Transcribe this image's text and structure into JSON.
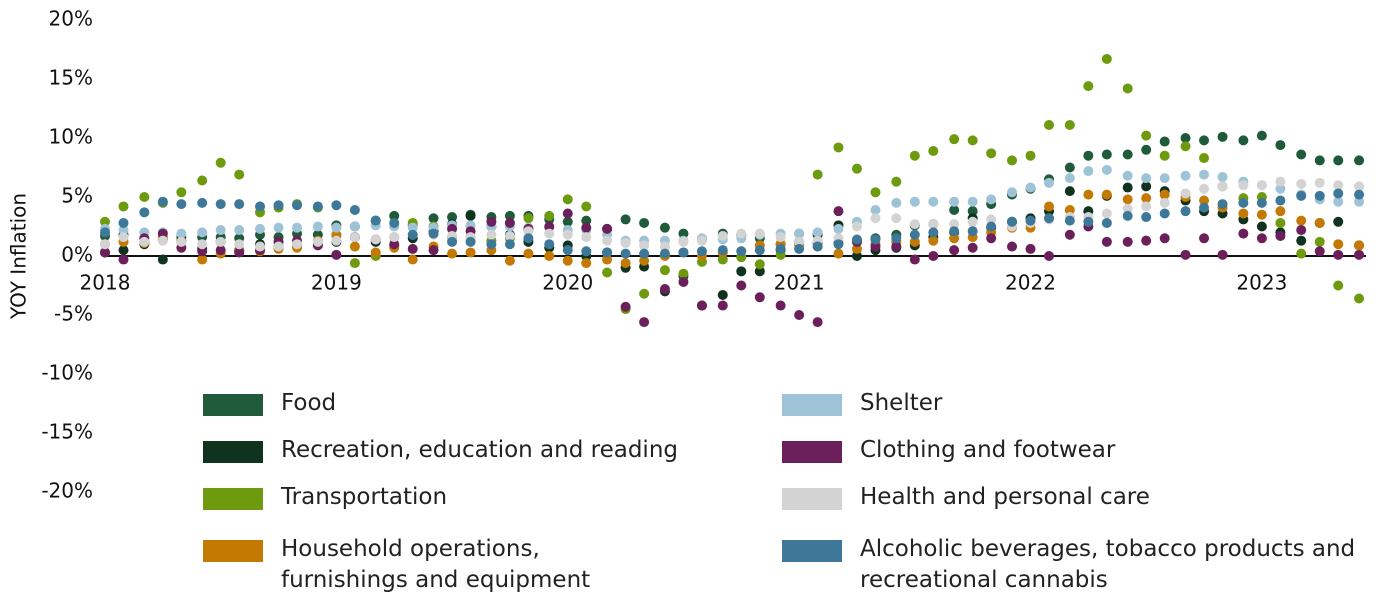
{
  "chart_data": {
    "type": "scatter",
    "y_label": "YOY Inflation",
    "xlim": [
      2018,
      2023.45
    ],
    "xticks": [
      2018,
      2019,
      2020,
      2021,
      2022,
      2023
    ],
    "ylim": [
      -20,
      20
    ],
    "yticks": [
      {
        "value": 20,
        "label": "20%"
      },
      {
        "value": 15,
        "label": "15%"
      },
      {
        "value": 10,
        "label": "10%"
      },
      {
        "value": 5,
        "label": "5%"
      },
      {
        "value": 0,
        "label": "0%"
      },
      {
        "value": -5,
        "label": "-5%"
      },
      {
        "value": -10,
        "label": "-10%"
      },
      {
        "value": -15,
        "label": "-15%"
      },
      {
        "value": -20,
        "label": "-20%"
      }
    ],
    "x": [
      2018,
      2018.08,
      2018.17,
      2018.25,
      2018.33,
      2018.42,
      2018.5,
      2018.58,
      2018.67,
      2018.75,
      2018.83,
      2018.92,
      2019,
      2019.08,
      2019.17,
      2019.25,
      2019.33,
      2019.42,
      2019.5,
      2019.58,
      2019.67,
      2019.75,
      2019.83,
      2019.92,
      2020,
      2020.08,
      2020.17,
      2020.25,
      2020.33,
      2020.42,
      2020.5,
      2020.58,
      2020.67,
      2020.75,
      2020.83,
      2020.92,
      2021,
      2021.08,
      2021.17,
      2021.25,
      2021.33,
      2021.42,
      2021.5,
      2021.58,
      2021.67,
      2021.75,
      2021.83,
      2021.92,
      2022,
      2022.08,
      2022.17,
      2022.25,
      2022.33,
      2022.42,
      2022.5,
      2022.58,
      2022.67,
      2022.75,
      2022.83,
      2022.92,
      2023,
      2023.08,
      2023.17,
      2023.25,
      2023.33,
      2023.42
    ],
    "series": [
      {
        "name": "Food",
        "color": "#1f5b3b",
        "values": [
          1.7,
          1.8,
          1.2,
          1.4,
          1.6,
          1.6,
          1.6,
          1.5,
          1.8,
          1.6,
          1.9,
          1.8,
          2.6,
          2.5,
          3.0,
          3.4,
          2.6,
          3.2,
          3.3,
          3.5,
          3.3,
          3.4,
          3.4,
          3.1,
          2.9,
          3.0,
          2.3,
          3.1,
          2.8,
          2.4,
          1.9,
          1.4,
          1.9,
          1.8,
          1.5,
          1.0,
          1.0,
          1.1,
          1.1,
          1.3,
          1.5,
          1.8,
          2.6,
          2.7,
          3.9,
          3.8,
          4.4,
          5.2,
          5.7,
          6.5,
          7.5,
          8.5,
          8.6,
          8.6,
          9.0,
          9.7,
          10.0,
          9.8,
          10.1,
          9.8,
          10.2,
          9.4,
          8.6,
          8.1,
          8.1,
          8.1
        ]
      },
      {
        "name": "Recreation, education and reading",
        "color": "#10331f",
        "values": [
          0.3,
          0.5,
          1.0,
          -0.3,
          1.3,
          0.6,
          1.2,
          0.5,
          1.0,
          0.8,
          0.8,
          1.0,
          1.2,
          1.6,
          1.2,
          0.9,
          1.5,
          2.1,
          2.7,
          3.4,
          2.5,
          1.8,
          1.2,
          0.7,
          0.9,
          0.0,
          0.3,
          -1.0,
          -0.9,
          -3.0,
          -1.7,
          -4.2,
          -3.3,
          -1.3,
          -1.3,
          0.5,
          1.2,
          1.8,
          2.6,
          0.0,
          0.5,
          0.7,
          0.9,
          1.6,
          2.0,
          3.2,
          2.4,
          2.9,
          3.2,
          3.8,
          5.5,
          3.8,
          5.1,
          5.8,
          5.9,
          5.5,
          4.7,
          3.8,
          3.6,
          3.1,
          2.5,
          2.0,
          1.3,
          2.8,
          2.9,
          0.9
        ]
      },
      {
        "name": "Transportation",
        "color": "#6e9a0d",
        "values": [
          2.9,
          4.2,
          5.0,
          4.5,
          5.4,
          6.4,
          7.9,
          6.9,
          3.7,
          4.1,
          4.4,
          4.1,
          1.7,
          -0.6,
          0.0,
          1.6,
          2.8,
          2.5,
          1.6,
          1.6,
          1.3,
          1.5,
          3.2,
          3.4,
          4.8,
          4.2,
          -1.4,
          -4.5,
          -3.2,
          -1.2,
          -1.5,
          -0.5,
          -0.3,
          -0.1,
          -0.7,
          0.1,
          1.9,
          6.9,
          9.2,
          7.4,
          5.4,
          6.3,
          8.5,
          8.9,
          9.9,
          9.8,
          8.7,
          8.1,
          8.5,
          11.1,
          11.1,
          14.4,
          16.7,
          14.2,
          10.2,
          8.5,
          9.3,
          8.3,
          5.9,
          4.9,
          5.0,
          2.8,
          0.2,
          1.2,
          -2.5,
          -3.6
        ]
      },
      {
        "name": "Household operations, furnishings and equipment",
        "color": "#c47a02",
        "values": [
          1.0,
          1.2,
          1.1,
          1.6,
          1.2,
          -0.3,
          0.2,
          0.4,
          0.4,
          0.6,
          0.7,
          1.3,
          1.8,
          0.8,
          0.3,
          0.7,
          -0.3,
          0.8,
          0.2,
          0.3,
          0.5,
          -0.4,
          0.2,
          0.0,
          -0.4,
          -0.6,
          -0.3,
          -0.6,
          -0.4,
          0.0,
          0.3,
          0.0,
          0.3,
          0.4,
          0.9,
          1.0,
          1.0,
          0.8,
          0.2,
          0.6,
          1.0,
          1.2,
          1.2,
          1.3,
          1.5,
          1.6,
          2.0,
          2.4,
          2.4,
          4.2,
          3.9,
          5.2,
          5.2,
          4.8,
          4.9,
          5.2,
          5.0,
          4.7,
          4.1,
          3.6,
          3.5,
          3.8,
          3.0,
          2.8,
          1.0,
          0.9
        ]
      },
      {
        "name": "Shelter",
        "color": "#9ec3d7",
        "values": [
          2.3,
          2.2,
          2.0,
          2.0,
          1.9,
          2.0,
          2.2,
          2.2,
          2.3,
          2.4,
          2.4,
          2.5,
          2.4,
          2.5,
          2.6,
          2.5,
          2.4,
          2.4,
          2.6,
          2.6,
          2.5,
          2.5,
          2.4,
          2.4,
          2.2,
          2.2,
          1.8,
          1.3,
          1.3,
          1.3,
          1.3,
          1.5,
          1.4,
          1.5,
          1.8,
          1.9,
          1.9,
          2.0,
          2.3,
          2.9,
          3.9,
          4.5,
          4.6,
          4.6,
          4.6,
          4.6,
          4.8,
          5.4,
          5.8,
          6.2,
          6.6,
          7.2,
          7.3,
          6.8,
          6.6,
          6.6,
          6.8,
          6.9,
          6.7,
          6.3,
          6.0,
          5.7,
          5.2,
          4.8,
          4.6,
          4.6
        ]
      },
      {
        "name": "Clothing and footwear",
        "color": "#6b1f5b",
        "values": [
          0.3,
          -0.3,
          1.5,
          1.9,
          0.7,
          0.4,
          0.5,
          0.3,
          0.5,
          1.2,
          1.3,
          0.9,
          0.1,
          1.6,
          1.4,
          1.0,
          0.6,
          0.5,
          2.3,
          2.1,
          2.9,
          2.8,
          2.3,
          2.5,
          3.6,
          2.4,
          2.3,
          -4.3,
          -5.6,
          -2.8,
          -2.2,
          -4.2,
          -4.2,
          -2.5,
          -3.5,
          -4.2,
          -5.0,
          -5.6,
          3.8,
          1.2,
          0.8,
          0.8,
          -0.3,
          0.0,
          0.5,
          0.7,
          1.5,
          0.8,
          0.6,
          0.0,
          1.8,
          2.5,
          1.2,
          1.2,
          1.3,
          1.5,
          0.1,
          1.5,
          0.1,
          1.9,
          1.5,
          1.7,
          2.2,
          0.4,
          0.1,
          0.1
        ]
      },
      {
        "name": "Health and personal care",
        "color": "#d3d3d3",
        "values": [
          1.0,
          1.6,
          1.2,
          1.3,
          1.2,
          1.0,
          1.2,
          1.0,
          0.8,
          0.8,
          1.0,
          1.2,
          1.3,
          1.6,
          1.4,
          1.6,
          1.8,
          1.8,
          1.7,
          1.6,
          1.8,
          1.7,
          2.1,
          1.9,
          1.8,
          1.6,
          1.3,
          1.1,
          0.9,
          0.8,
          1.2,
          1.3,
          1.7,
          1.9,
          1.9,
          1.6,
          1.2,
          1.3,
          1.5,
          2.5,
          3.2,
          3.2,
          2.7,
          2.7,
          2.7,
          2.9,
          3.1,
          2.5,
          2.8,
          3.1,
          3.3,
          3.3,
          3.6,
          4.0,
          4.2,
          4.5,
          5.3,
          5.7,
          5.9,
          6.0,
          6.0,
          6.3,
          6.1,
          6.2,
          6.0,
          5.9
        ]
      },
      {
        "name": "Alcoholic beverages, tobacco products and recreational cannabis",
        "color": "#3e7899",
        "values": [
          2.0,
          2.8,
          3.7,
          4.6,
          4.4,
          4.5,
          4.4,
          4.4,
          4.2,
          4.3,
          4.3,
          4.2,
          4.3,
          3.9,
          3.0,
          2.8,
          1.8,
          1.9,
          1.2,
          1.2,
          1.0,
          1.0,
          1.5,
          1.0,
          0.5,
          0.4,
          0.3,
          0.2,
          0.2,
          0.2,
          0.3,
          0.4,
          0.5,
          0.4,
          0.5,
          0.6,
          0.6,
          0.8,
          1.0,
          1.4,
          1.4,
          1.5,
          1.8,
          2.0,
          2.1,
          2.1,
          2.5,
          2.9,
          3.0,
          3.2,
          3.0,
          2.9,
          2.8,
          3.4,
          3.3,
          3.6,
          3.8,
          4.1,
          4.4,
          4.5,
          4.5,
          4.7,
          5.1,
          5.1,
          5.3,
          5.2
        ]
      }
    ]
  }
}
